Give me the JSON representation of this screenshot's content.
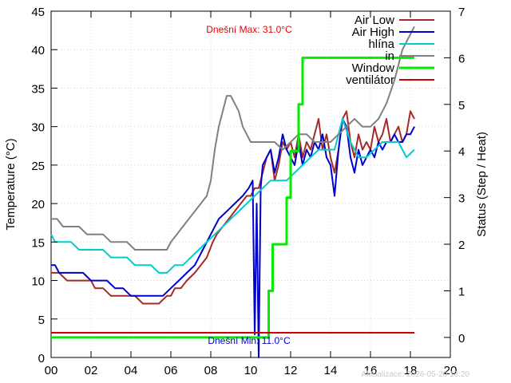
{
  "chart_data": {
    "type": "line",
    "xlabel": "",
    "ylabel": "Temperature (°C)",
    "y2label": "Status (Step / Heat)",
    "xlim": [
      0,
      20
    ],
    "ylim": [
      0,
      45
    ],
    "y2lim": [
      -0.43,
      7
    ],
    "x_ticks": [
      0,
      2,
      4,
      6,
      8,
      10,
      12,
      14,
      16,
      18,
      20
    ],
    "x_tick_labels": [
      "00",
      "02",
      "04",
      "06",
      "08",
      "10",
      "12",
      "14",
      "16",
      "18",
      "20"
    ],
    "y_ticks": [
      0,
      5,
      10,
      15,
      20,
      25,
      30,
      35,
      40,
      45
    ],
    "y2_ticks": [
      0,
      1,
      2,
      3,
      4,
      5,
      6,
      7
    ],
    "grid": true,
    "legend_position": "top-right",
    "annotations": {
      "max_label": "Dnešní Max: 31.0°C",
      "min_label": "Dnešní Min: 11.0°C",
      "updated_label": "Aktualizace: 2026-05-20 18:20"
    },
    "series": [
      {
        "name": "Air Low",
        "color": "#a52a2a",
        "axis": "y",
        "x": [
          0,
          0.4,
          0.8,
          1.2,
          1.6,
          2.0,
          2.2,
          2.6,
          3.0,
          3.4,
          3.8,
          4.2,
          4.6,
          5.0,
          5.4,
          5.8,
          6.0,
          6.2,
          6.5,
          6.8,
          7.2,
          7.5,
          7.8,
          8.1,
          8.3,
          8.6,
          8.9,
          9.2,
          9.5,
          9.8,
          10.0,
          10.2,
          10.4,
          10.6,
          10.8,
          11.0,
          11.2,
          11.4,
          11.6,
          11.8,
          12.0,
          12.2,
          12.4,
          12.6,
          12.8,
          13.0,
          13.2,
          13.4,
          13.6,
          13.8,
          14.0,
          14.2,
          14.4,
          14.6,
          14.8,
          15.0,
          15.2,
          15.4,
          15.6,
          15.8,
          16.0,
          16.2,
          16.4,
          16.6,
          16.8,
          17.0,
          17.2,
          17.4,
          17.6,
          17.8,
          18.0,
          18.2
        ],
        "y": [
          11,
          11,
          10,
          10,
          10,
          10,
          9,
          9,
          8,
          8,
          8,
          8,
          7,
          7,
          7,
          8,
          8,
          9,
          9,
          10,
          11,
          12,
          13,
          15,
          16,
          17,
          18,
          19,
          20,
          21,
          21,
          22,
          22,
          24,
          26,
          27,
          23,
          25,
          28,
          27,
          28,
          26,
          29,
          26,
          28,
          27,
          29,
          31,
          27,
          29,
          26,
          24,
          27,
          31,
          32,
          28,
          26,
          29,
          27,
          28,
          27,
          30,
          28,
          29,
          31,
          28,
          29,
          30,
          28,
          29,
          32,
          31
        ]
      },
      {
        "name": "Air High",
        "color": "#0000cd",
        "axis": "y",
        "x": [
          0,
          0.2,
          0.4,
          0.8,
          1.2,
          1.6,
          2.0,
          2.4,
          2.8,
          3.2,
          3.6,
          4.0,
          4.4,
          4.8,
          5.2,
          5.6,
          6.0,
          6.4,
          6.8,
          7.2,
          7.6,
          8.0,
          8.4,
          8.8,
          9.2,
          9.6,
          9.9,
          10.1,
          10.2,
          10.3,
          10.4,
          10.5,
          10.6,
          10.8,
          11.0,
          11.2,
          11.4,
          11.6,
          11.8,
          12.0,
          12.2,
          12.4,
          12.6,
          12.8,
          13.0,
          13.2,
          13.4,
          13.6,
          13.8,
          14.0,
          14.2,
          14.4,
          14.6,
          14.8,
          15.0,
          15.2,
          15.4,
          15.6,
          15.8,
          16.0,
          16.2,
          16.4,
          16.6,
          16.8,
          17.0,
          17.2,
          17.4,
          17.6,
          17.8,
          18.0,
          18.2
        ],
        "y": [
          12,
          12,
          11,
          11,
          11,
          11,
          10,
          10,
          10,
          9,
          9,
          8,
          8,
          8,
          8,
          8,
          9,
          10,
          11,
          12,
          14,
          16,
          18,
          19,
          20,
          21,
          22,
          23,
          3,
          20,
          0,
          22,
          25,
          26,
          27,
          24,
          26,
          29,
          27,
          26,
          25,
          28,
          25,
          27,
          26,
          28,
          27,
          29,
          26,
          25,
          21,
          27,
          31,
          30,
          26,
          24,
          27,
          25,
          26,
          27,
          26,
          28,
          27,
          28,
          28,
          29,
          28,
          28,
          29,
          29,
          30
        ]
      },
      {
        "name": "hlína",
        "color": "#00cdcd",
        "axis": "y",
        "x": [
          0,
          0.2,
          0.6,
          1.0,
          1.4,
          1.8,
          2.2,
          2.6,
          3.0,
          3.4,
          3.8,
          4.2,
          4.6,
          5.0,
          5.4,
          5.8,
          6.2,
          6.6,
          7.0,
          7.4,
          7.8,
          8.2,
          8.6,
          9.0,
          9.4,
          9.8,
          10.2,
          10.6,
          11.0,
          11.4,
          11.8,
          12.2,
          12.6,
          13.0,
          13.4,
          13.8,
          14.2,
          14.6,
          15.0,
          15.4,
          15.8,
          16.2,
          16.6,
          17.0,
          17.4,
          17.8,
          18.2
        ],
        "y": [
          16,
          15,
          15,
          15,
          14,
          14,
          14,
          14,
          13,
          13,
          13,
          12,
          12,
          12,
          11,
          11,
          12,
          12,
          13,
          14,
          15,
          16,
          17,
          18,
          19,
          20,
          21,
          22,
          23,
          23,
          23,
          24,
          25,
          26,
          27,
          27,
          27,
          31,
          28,
          26,
          26,
          27,
          28,
          28,
          28,
          26,
          27
        ]
      },
      {
        "name": "in",
        "color": "#808080",
        "axis": "y",
        "x": [
          0,
          0.3,
          0.6,
          1.0,
          1.4,
          1.8,
          2.2,
          2.6,
          3.0,
          3.4,
          3.8,
          4.2,
          4.6,
          5.0,
          5.4,
          5.8,
          6.0,
          6.3,
          6.6,
          6.9,
          7.2,
          7.5,
          7.8,
          8.0,
          8.2,
          8.4,
          8.6,
          8.8,
          9.0,
          9.2,
          9.4,
          9.6,
          9.8,
          10.0,
          10.4,
          10.8,
          11.2,
          11.6,
          12.0,
          12.4,
          12.8,
          13.2,
          13.6,
          14.0,
          14.4,
          14.8,
          15.2,
          15.6,
          16.0,
          16.4,
          16.8,
          17.2,
          17.6,
          18.0,
          18.2
        ],
        "y": [
          18,
          18,
          17,
          17,
          17,
          16,
          16,
          16,
          15,
          15,
          15,
          14,
          14,
          14,
          14,
          14,
          15,
          16,
          17,
          18,
          19,
          20,
          21,
          23,
          27,
          30,
          32,
          34,
          34,
          33,
          32,
          30,
          29,
          28,
          28,
          28,
          28,
          27,
          28,
          29,
          29,
          28,
          28,
          28,
          29,
          30,
          31,
          30,
          30,
          31,
          33,
          36,
          40,
          42,
          43
        ]
      },
      {
        "name": "Window",
        "color": "#00ee00",
        "axis": "y2",
        "x": [
          0,
          10.9,
          10.9,
          11.1,
          11.1,
          11.8,
          11.8,
          12.0,
          12.0,
          12.4,
          12.4,
          12.6,
          12.6,
          18.2
        ],
        "y": [
          0,
          0,
          1,
          1,
          2,
          2,
          3,
          3,
          4,
          4,
          5,
          5,
          6,
          6
        ]
      },
      {
        "name": "ventilátor",
        "color": "#cd0000",
        "axis": "y2",
        "x": [
          0,
          18.2
        ],
        "y": [
          0.1,
          0.1
        ]
      }
    ]
  }
}
